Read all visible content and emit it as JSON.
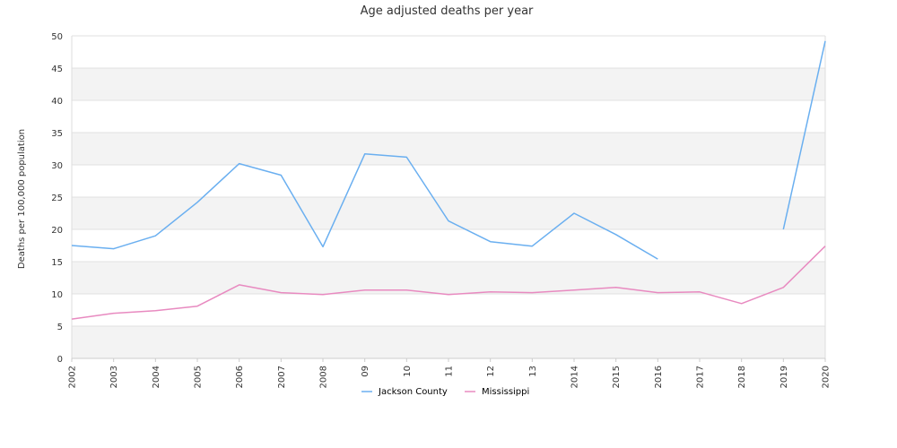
{
  "chart_data": {
    "type": "line",
    "title": "Age adjusted deaths per year",
    "xlabel": "",
    "ylabel": "Deaths per 100,000 population",
    "ylim": [
      0,
      50
    ],
    "yticks": [
      0,
      5,
      10,
      15,
      20,
      25,
      30,
      35,
      40,
      45,
      50
    ],
    "categories": [
      "2002",
      "2003",
      "2004",
      "2005",
      "2006",
      "2007",
      "2008",
      "09",
      "10",
      "11",
      "12",
      "13",
      "2014",
      "2015",
      "2016",
      "2017",
      "2018",
      "2019",
      "2020"
    ],
    "grid": "alternating horizontal bands",
    "legend_position": "bottom",
    "series": [
      {
        "name": "Jackson County",
        "color": "#6aaff0",
        "values": [
          17.5,
          17.0,
          19.0,
          24.2,
          30.2,
          28.4,
          17.3,
          31.7,
          31.2,
          21.3,
          18.1,
          17.4,
          22.5,
          19.2,
          15.4,
          null,
          null,
          20.0,
          49.2
        ]
      },
      {
        "name": "Mississippi",
        "color": "#e88ac0",
        "values": [
          6.1,
          7.0,
          7.4,
          8.1,
          11.4,
          10.2,
          9.9,
          10.6,
          10.6,
          9.9,
          10.3,
          10.2,
          10.6,
          11.0,
          10.2,
          10.3,
          8.5,
          11.0,
          17.4
        ]
      }
    ]
  }
}
